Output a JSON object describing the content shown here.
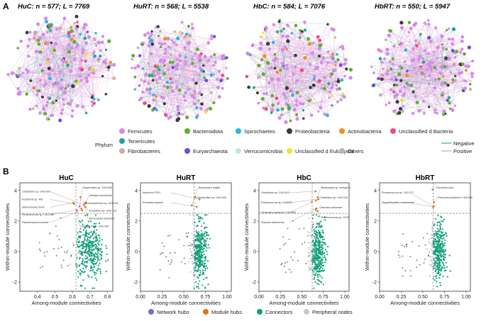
{
  "figure": {
    "panel_a_label": "A",
    "panel_b_label": "B",
    "networks": [
      {
        "title": "HuC: n = 577; L = 7769"
      },
      {
        "title": "HuRT: n = 568; L = 5538"
      },
      {
        "title": "HbC: n = 584; L = 7076"
      },
      {
        "title": "HbRT: n = 550; L = 5947"
      }
    ],
    "phylum_legend": {
      "title": "Phylum",
      "items": [
        {
          "label": "Firmicutes",
          "color": "#d48be8"
        },
        {
          "label": "Bacteroidota",
          "color": "#5ab22c"
        },
        {
          "label": "Spirochaetes",
          "color": "#27b6e4"
        },
        {
          "label": "Proteobacteria",
          "color": "#3b3b3b"
        },
        {
          "label": "Actinobacteria",
          "color": "#f28d1d"
        },
        {
          "label": "Unclassified d Bacteria",
          "color": "#ef4b7e"
        },
        {
          "label": "Tenericutes",
          "color": "#17a98f"
        },
        {
          "label": "Fibrobacteres",
          "color": "#d9aaa5"
        },
        {
          "label": "Euryarchaeota",
          "color": "#6b4de0"
        },
        {
          "label": "Verrucomicrobia",
          "color": "#c5e7d6"
        },
        {
          "label": "Unclassified d Eukaryota",
          "color": "#f3e02a"
        },
        {
          "label": "Others",
          "color": "#b6b6b6"
        }
      ]
    },
    "edge_legend": [
      {
        "label": "Negative",
        "color": "#3aa89a"
      },
      {
        "label": "Positive",
        "color": "#e291d5"
      }
    ],
    "role_legend": [
      {
        "label": "Network hubs",
        "color": "#7b68c8"
      },
      {
        "label": "Module hubs",
        "color": "#e0731c"
      },
      {
        "label": "Connectors",
        "color": "#149f78"
      },
      {
        "label": "Peripheral nodes",
        "color": "#c8c8c8"
      }
    ]
  },
  "chart_data": [
    {
      "type": "scatter",
      "title": "HuC",
      "xlabel": "Among-module connectivities",
      "ylabel": "Within-module connectivities",
      "xlim": [
        0.3,
        0.83
      ],
      "ylim": [
        -2.6,
        4.5
      ],
      "xticks": [
        0.4,
        0.5,
        0.6,
        0.7,
        0.8
      ],
      "xtick_labels": [
        "0.4",
        "0.5",
        "0.6",
        "0.7",
        "0.8"
      ],
      "yticks": [
        -2,
        0,
        2,
        4
      ],
      "ytick_labels": [
        "-2",
        "0",
        "2",
        "4"
      ],
      "x_threshold": 0.62,
      "y_threshold": 2.5,
      "hub_labels": [
        "Bacteroides sp. CAG:545",
        "Clostridium sp. CAG:609",
        "Alistipes timonensis",
        "Roseburia sp. 499",
        "Lachnobacterium sp. AF33-06",
        "Selenomonas bovis",
        "Clostridium sp. CAG:118",
        "Ruminococcus sp. CAG:330",
        "Spirochaetia bacterium",
        "Peptostreptococcaceae",
        "Clostridium sp. CAG:448"
      ]
    },
    {
      "type": "scatter",
      "title": "HuRT",
      "xlabel": "Among-module connectivities",
      "ylabel": "Within-module connectivities",
      "xlim": [
        0.0,
        1.05
      ],
      "ylim": [
        -2.6,
        4.5
      ],
      "xticks": [
        0.0,
        0.25,
        0.5,
        0.75,
        1.0
      ],
      "xtick_labels": [
        "0.00",
        "0.25",
        "0.50",
        "0.75",
        "1.00"
      ],
      "yticks": [
        -2,
        0,
        2,
        4
      ],
      "ytick_labels": [
        "-2",
        "0",
        "2",
        "4"
      ],
      "x_threshold": 0.62,
      "y_threshold": 2.5,
      "hub_labels": [
        "Bacteroides fragilis",
        "bacterium P201",
        "Coprobacillus sp. CAG:605",
        "Prevotella bryantii"
      ]
    },
    {
      "type": "scatter",
      "title": "HbC",
      "xlabel": "Among-module connectivities",
      "ylabel": "Within-module connectivities",
      "xlim": [
        0.0,
        1.05
      ],
      "ylim": [
        -2.6,
        4.5
      ],
      "xticks": [
        0.0,
        0.25,
        0.5,
        0.75,
        1.0
      ],
      "xtick_labels": [
        "0.00",
        "0.25",
        "0.50",
        "0.75",
        "1.00"
      ],
      "yticks": [
        -2,
        0,
        2,
        4
      ],
      "ytick_labels": [
        "-2",
        "0",
        "2",
        "4"
      ],
      "x_threshold": 0.62,
      "y_threshold": 2.5,
      "hub_labels": [
        "Blastocystis sp. subtype 1",
        "Clostridium sp. CAG:433",
        "Clostridium sp. CAG:918",
        "Ruminococcus sp. HUN007",
        "Olsenella umbonata",
        "Firmicutes bacterium CAG:582",
        "Ruminococcus sp. YE78",
        "Sharpea azabuensis"
      ]
    },
    {
      "type": "scatter",
      "title": "HbRT",
      "xlabel": "Among-module connectivities",
      "ylabel": "Within-module connectivities",
      "xlim": [
        0.0,
        1.05
      ],
      "ylim": [
        -2.6,
        4.5
      ],
      "xticks": [
        0.0,
        0.25,
        0.5,
        0.75,
        1.0
      ],
      "xtick_labels": [
        "0.00",
        "0.25",
        "0.50",
        "0.75",
        "1.00"
      ],
      "yticks": [
        -2,
        0,
        2,
        4
      ],
      "ytick_labels": [
        "-2",
        "0",
        "2",
        "4"
      ],
      "x_threshold": 0.62,
      "y_threshold": 2.5,
      "hub_labels": [
        "Prevotella copri",
        "Ruminococcus sp. CAG:177",
        "Firmicutes bacterium CAG:555",
        "Negativibacillus massiliensis"
      ]
    }
  ]
}
